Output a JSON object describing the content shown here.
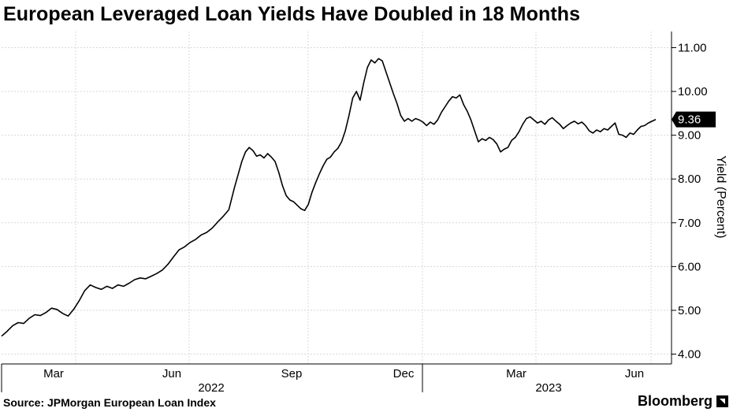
{
  "title": "European Leveraged Loan Yields Have Doubled in 18 Months",
  "source": "Source: JPMorgan European Loan Index",
  "brand": "Bloomberg",
  "colors": {
    "line": "#000000",
    "grid": "#d8d8d8",
    "axis": "#000000",
    "badge_bg": "#000000",
    "badge_text": "#ffffff"
  },
  "chart_data": {
    "type": "line",
    "ylabel": "Yield (Percent)",
    "ylim": [
      4.0,
      11.0
    ],
    "y_ticks": [
      "4.00",
      "5.00",
      "6.00",
      "7.00",
      "8.00",
      "9.00",
      "10.00",
      "11.00"
    ],
    "y_tick_values": [
      4,
      5,
      6,
      7,
      8,
      9,
      10,
      11
    ],
    "x_month_labels": [
      "Mar",
      "Jun",
      "Sep",
      "Dec",
      "Mar",
      "Jun"
    ],
    "x_year_labels": [
      "2022",
      "2023"
    ],
    "grid": true,
    "last_value_label": "9.36",
    "series": [
      {
        "values": [
          [
            0,
            4.41
          ],
          [
            3,
            4.52
          ],
          [
            6,
            4.65
          ],
          [
            9,
            4.72
          ],
          [
            12,
            4.7
          ],
          [
            15,
            4.82
          ],
          [
            18,
            4.9
          ],
          [
            21,
            4.88
          ],
          [
            24,
            4.95
          ],
          [
            27,
            5.05
          ],
          [
            30,
            5.02
          ],
          [
            33,
            4.93
          ],
          [
            36,
            4.87
          ],
          [
            39,
            5.02
          ],
          [
            42,
            5.22
          ],
          [
            45,
            5.45
          ],
          [
            48,
            5.58
          ],
          [
            51,
            5.52
          ],
          [
            54,
            5.48
          ],
          [
            57,
            5.55
          ],
          [
            60,
            5.5
          ],
          [
            63,
            5.58
          ],
          [
            66,
            5.55
          ],
          [
            69,
            5.62
          ],
          [
            72,
            5.7
          ],
          [
            75,
            5.74
          ],
          [
            78,
            5.72
          ],
          [
            81,
            5.78
          ],
          [
            84,
            5.84
          ],
          [
            87,
            5.92
          ],
          [
            90,
            6.05
          ],
          [
            93,
            6.22
          ],
          [
            96,
            6.38
          ],
          [
            99,
            6.45
          ],
          [
            102,
            6.55
          ],
          [
            105,
            6.62
          ],
          [
            108,
            6.72
          ],
          [
            111,
            6.78
          ],
          [
            114,
            6.88
          ],
          [
            117,
            7.02
          ],
          [
            120,
            7.15
          ],
          [
            123,
            7.3
          ],
          [
            126,
            7.8
          ],
          [
            128,
            8.1
          ],
          [
            130,
            8.4
          ],
          [
            132,
            8.62
          ],
          [
            134,
            8.72
          ],
          [
            136,
            8.65
          ],
          [
            138,
            8.52
          ],
          [
            140,
            8.55
          ],
          [
            142,
            8.48
          ],
          [
            144,
            8.58
          ],
          [
            146,
            8.5
          ],
          [
            148,
            8.4
          ],
          [
            150,
            8.15
          ],
          [
            152,
            7.85
          ],
          [
            154,
            7.62
          ],
          [
            156,
            7.52
          ],
          [
            158,
            7.48
          ],
          [
            160,
            7.4
          ],
          [
            162,
            7.32
          ],
          [
            164,
            7.28
          ],
          [
            166,
            7.42
          ],
          [
            168,
            7.7
          ],
          [
            170,
            7.92
          ],
          [
            172,
            8.12
          ],
          [
            174,
            8.3
          ],
          [
            176,
            8.45
          ],
          [
            178,
            8.5
          ],
          [
            180,
            8.62
          ],
          [
            182,
            8.7
          ],
          [
            184,
            8.85
          ],
          [
            186,
            9.1
          ],
          [
            188,
            9.45
          ],
          [
            190,
            9.85
          ],
          [
            192,
            10.0
          ],
          [
            194,
            9.8
          ],
          [
            196,
            10.2
          ],
          [
            198,
            10.55
          ],
          [
            200,
            10.72
          ],
          [
            202,
            10.65
          ],
          [
            204,
            10.75
          ],
          [
            206,
            10.7
          ],
          [
            208,
            10.45
          ],
          [
            210,
            10.2
          ],
          [
            212,
            9.95
          ],
          [
            214,
            9.72
          ],
          [
            216,
            9.45
          ],
          [
            218,
            9.32
          ],
          [
            220,
            9.38
          ],
          [
            222,
            9.32
          ],
          [
            224,
            9.38
          ],
          [
            226,
            9.35
          ],
          [
            228,
            9.3
          ],
          [
            230,
            9.22
          ],
          [
            232,
            9.3
          ],
          [
            234,
            9.25
          ],
          [
            236,
            9.35
          ],
          [
            238,
            9.52
          ],
          [
            240,
            9.65
          ],
          [
            242,
            9.78
          ],
          [
            244,
            9.88
          ],
          [
            246,
            9.85
          ],
          [
            248,
            9.92
          ],
          [
            250,
            9.7
          ],
          [
            252,
            9.55
          ],
          [
            254,
            9.35
          ],
          [
            256,
            9.1
          ],
          [
            258,
            8.85
          ],
          [
            260,
            8.92
          ],
          [
            262,
            8.88
          ],
          [
            264,
            8.95
          ],
          [
            266,
            8.9
          ],
          [
            268,
            8.8
          ],
          [
            270,
            8.62
          ],
          [
            272,
            8.68
          ],
          [
            274,
            8.72
          ],
          [
            276,
            8.88
          ],
          [
            278,
            8.95
          ],
          [
            280,
            9.08
          ],
          [
            282,
            9.25
          ],
          [
            284,
            9.38
          ],
          [
            286,
            9.42
          ],
          [
            288,
            9.35
          ],
          [
            290,
            9.28
          ],
          [
            292,
            9.32
          ],
          [
            294,
            9.25
          ],
          [
            296,
            9.35
          ],
          [
            298,
            9.4
          ],
          [
            300,
            9.32
          ],
          [
            302,
            9.25
          ],
          [
            304,
            9.15
          ],
          [
            306,
            9.22
          ],
          [
            308,
            9.28
          ],
          [
            310,
            9.32
          ],
          [
            312,
            9.26
          ],
          [
            314,
            9.3
          ],
          [
            316,
            9.22
          ],
          [
            318,
            9.1
          ],
          [
            320,
            9.05
          ],
          [
            322,
            9.12
          ],
          [
            324,
            9.08
          ],
          [
            326,
            9.15
          ],
          [
            328,
            9.12
          ],
          [
            330,
            9.2
          ],
          [
            332,
            9.28
          ],
          [
            334,
            9.02
          ],
          [
            336,
            9.0
          ],
          [
            338,
            8.95
          ],
          [
            340,
            9.05
          ],
          [
            342,
            9.02
          ],
          [
            344,
            9.12
          ],
          [
            346,
            9.2
          ],
          [
            348,
            9.22
          ],
          [
            350,
            9.28
          ],
          [
            352,
            9.32
          ],
          [
            354,
            9.36
          ]
        ]
      }
    ]
  }
}
